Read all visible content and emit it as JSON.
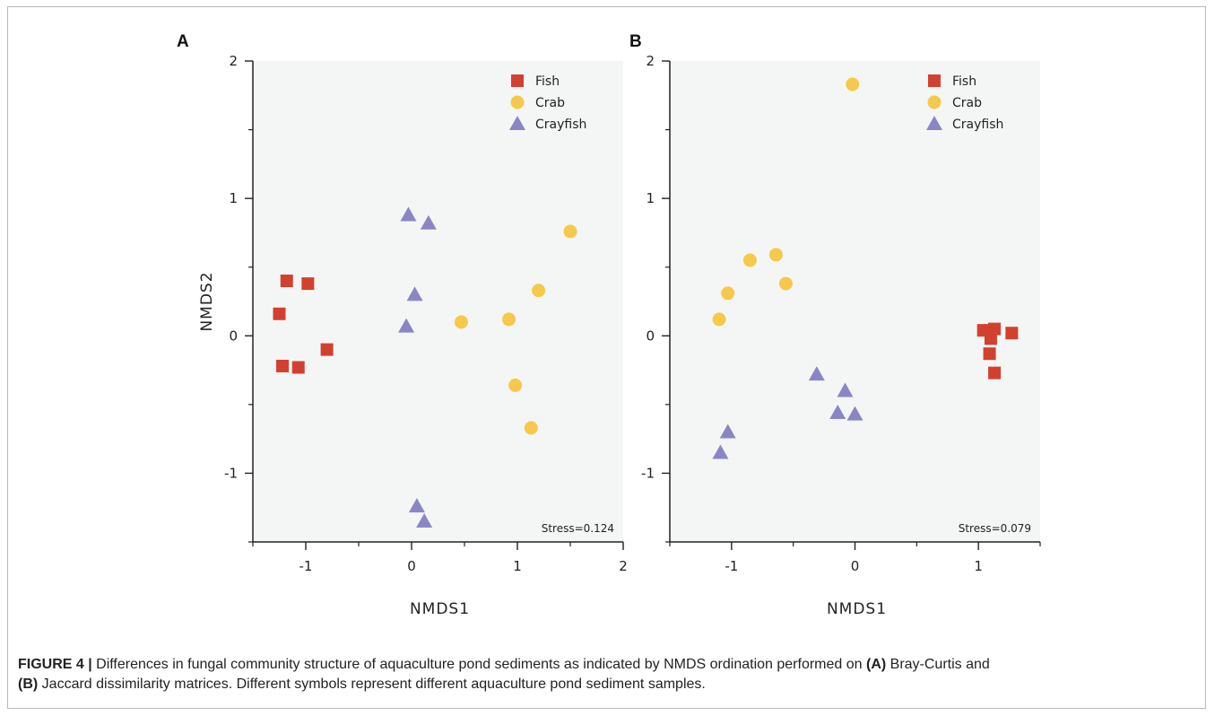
{
  "chart_data": [
    {
      "type": "scatter",
      "panel_label": "A",
      "xlabel": "NMDS1",
      "ylabel": "NMDS2",
      "xlim": [
        -1.5,
        2
      ],
      "ylim": [
        -1.5,
        2
      ],
      "xticks": [
        -1,
        0,
        1,
        2
      ],
      "xtick_labels": [
        "-1",
        "0",
        "1",
        "2"
      ],
      "xminor": [
        -1.5,
        -0.5,
        0.5,
        1.5
      ],
      "yticks": [
        -1,
        0,
        1,
        2
      ],
      "ytick_labels": [
        "-1",
        "0",
        "1",
        "2"
      ],
      "yminor": [
        -1.5,
        -0.5,
        0.5,
        1.5
      ],
      "annotation": "Stress=0.124",
      "legend_position": "top-right",
      "series": [
        {
          "name": "Fish",
          "marker": "square",
          "color": "#d2412f",
          "points": [
            [
              -1.18,
              0.4
            ],
            [
              -0.98,
              0.38
            ],
            [
              -1.25,
              0.16
            ],
            [
              -0.8,
              -0.1
            ],
            [
              -1.22,
              -0.22
            ],
            [
              -1.07,
              -0.23
            ]
          ]
        },
        {
          "name": "Crab",
          "marker": "circle",
          "color": "#f6c84c",
          "points": [
            [
              1.5,
              0.76
            ],
            [
              1.2,
              0.33
            ],
            [
              0.47,
              0.1
            ],
            [
              0.92,
              0.12
            ],
            [
              0.98,
              -0.36
            ],
            [
              1.13,
              -0.67
            ]
          ]
        },
        {
          "name": "Crayfish",
          "marker": "triangle",
          "color": "#8a86c6",
          "points": [
            [
              -0.03,
              0.88
            ],
            [
              0.16,
              0.82
            ],
            [
              0.03,
              0.3
            ],
            [
              -0.05,
              0.07
            ],
            [
              0.05,
              -1.24
            ],
            [
              0.12,
              -1.35
            ]
          ]
        }
      ]
    },
    {
      "type": "scatter",
      "panel_label": "B",
      "xlabel": "NMDS1",
      "ylabel": "",
      "xlim": [
        -1.5,
        1.5
      ],
      "ylim": [
        -1.5,
        2
      ],
      "xticks": [
        -1,
        0,
        1
      ],
      "xtick_labels": [
        "-1",
        "0",
        "1"
      ],
      "xminor": [
        -1.5,
        -0.5,
        0.5,
        1.5
      ],
      "yticks": [
        -1,
        0,
        1,
        2
      ],
      "ytick_labels": [
        "-1",
        "0",
        "1",
        "2"
      ],
      "yminor": [
        -1.5,
        -0.5,
        0.5,
        1.5
      ],
      "annotation": "Stress=0.079",
      "legend_position": "top-right",
      "series": [
        {
          "name": "Fish",
          "marker": "square",
          "color": "#d2412f",
          "points": [
            [
              1.04,
              0.04
            ],
            [
              1.13,
              0.05
            ],
            [
              1.27,
              0.02
            ],
            [
              1.1,
              -0.02
            ],
            [
              1.09,
              -0.13
            ],
            [
              1.13,
              -0.27
            ]
          ]
        },
        {
          "name": "Crab",
          "marker": "circle",
          "color": "#f6c84c",
          "points": [
            [
              -0.02,
              1.83
            ],
            [
              -0.64,
              0.59
            ],
            [
              -0.85,
              0.55
            ],
            [
              -0.56,
              0.38
            ],
            [
              -1.03,
              0.31
            ],
            [
              -1.1,
              0.12
            ]
          ]
        },
        {
          "name": "Crayfish",
          "marker": "triangle",
          "color": "#8a86c6",
          "points": [
            [
              -0.31,
              -0.28
            ],
            [
              -0.08,
              -0.4
            ],
            [
              -0.14,
              -0.56
            ],
            [
              0.0,
              -0.57
            ],
            [
              -1.03,
              -0.7
            ],
            [
              -1.09,
              -0.85
            ]
          ]
        }
      ]
    }
  ],
  "caption": {
    "label": "FIGURE 4 |",
    "text1": " Differences in fungal community structure of aquaculture pond sediments as indicated by NMDS ordination performed on ",
    "ref_a": "(A)",
    "text2": " Bray-Curtis and",
    "ref_b": "(B)",
    "text3": " Jaccard dissimilarity matrices. Different symbols represent different aquaculture pond sediment samples."
  },
  "colors": {
    "plot_background": "#f4f6f5",
    "axis": "#222222",
    "fish": "#d2412f",
    "crab": "#f6c84c",
    "crayfish": "#8a86c6"
  }
}
